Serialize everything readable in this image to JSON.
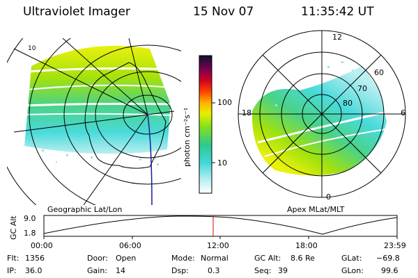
{
  "header": {
    "title": "Ultraviolet Imager",
    "date": "15 Nov 07",
    "time": "11:35:42 UT"
  },
  "colorbar": {
    "label": "photon cm⁻²s⁻¹",
    "ticks": [
      "100",
      "10"
    ]
  },
  "left_map": {
    "caption": "Geographic Lat/Lon",
    "corner_label": "10"
  },
  "polar_plot": {
    "caption": "Apex MLat/MLT",
    "mlt_labels": {
      "top": "12",
      "left": "18",
      "right": "6",
      "bottom": "0"
    },
    "lat_labels": [
      "60",
      "70",
      "80"
    ]
  },
  "timeline": {
    "ylabel": "GC Alt",
    "y_ticks": [
      "9.0",
      "1.8"
    ],
    "x_ticks": [
      "00:00",
      "06:00",
      "12:00",
      "18:00",
      "23:59"
    ],
    "line_color": "#000000",
    "marker_color": "#e00000"
  },
  "info": {
    "flt": {
      "label": "Flt:",
      "value": "1356"
    },
    "ip": {
      "label": "IP:",
      "value": "36.0"
    },
    "door": {
      "label": "Door:",
      "value": "Open"
    },
    "gain": {
      "label": "Gain:",
      "value": "14"
    },
    "mode": {
      "label": "Mode:",
      "value": "Normal"
    },
    "dsp": {
      "label": "Dsp:",
      "value": "0.3"
    },
    "gcalt": {
      "label": "GC Alt:",
      "value": "8.6 Re"
    },
    "seq": {
      "label": "Seq:",
      "value": "39"
    },
    "glat": {
      "label": "GLat:",
      "value": "−69.8"
    },
    "glon": {
      "label": "GLon:",
      "value": "99.6"
    }
  }
}
